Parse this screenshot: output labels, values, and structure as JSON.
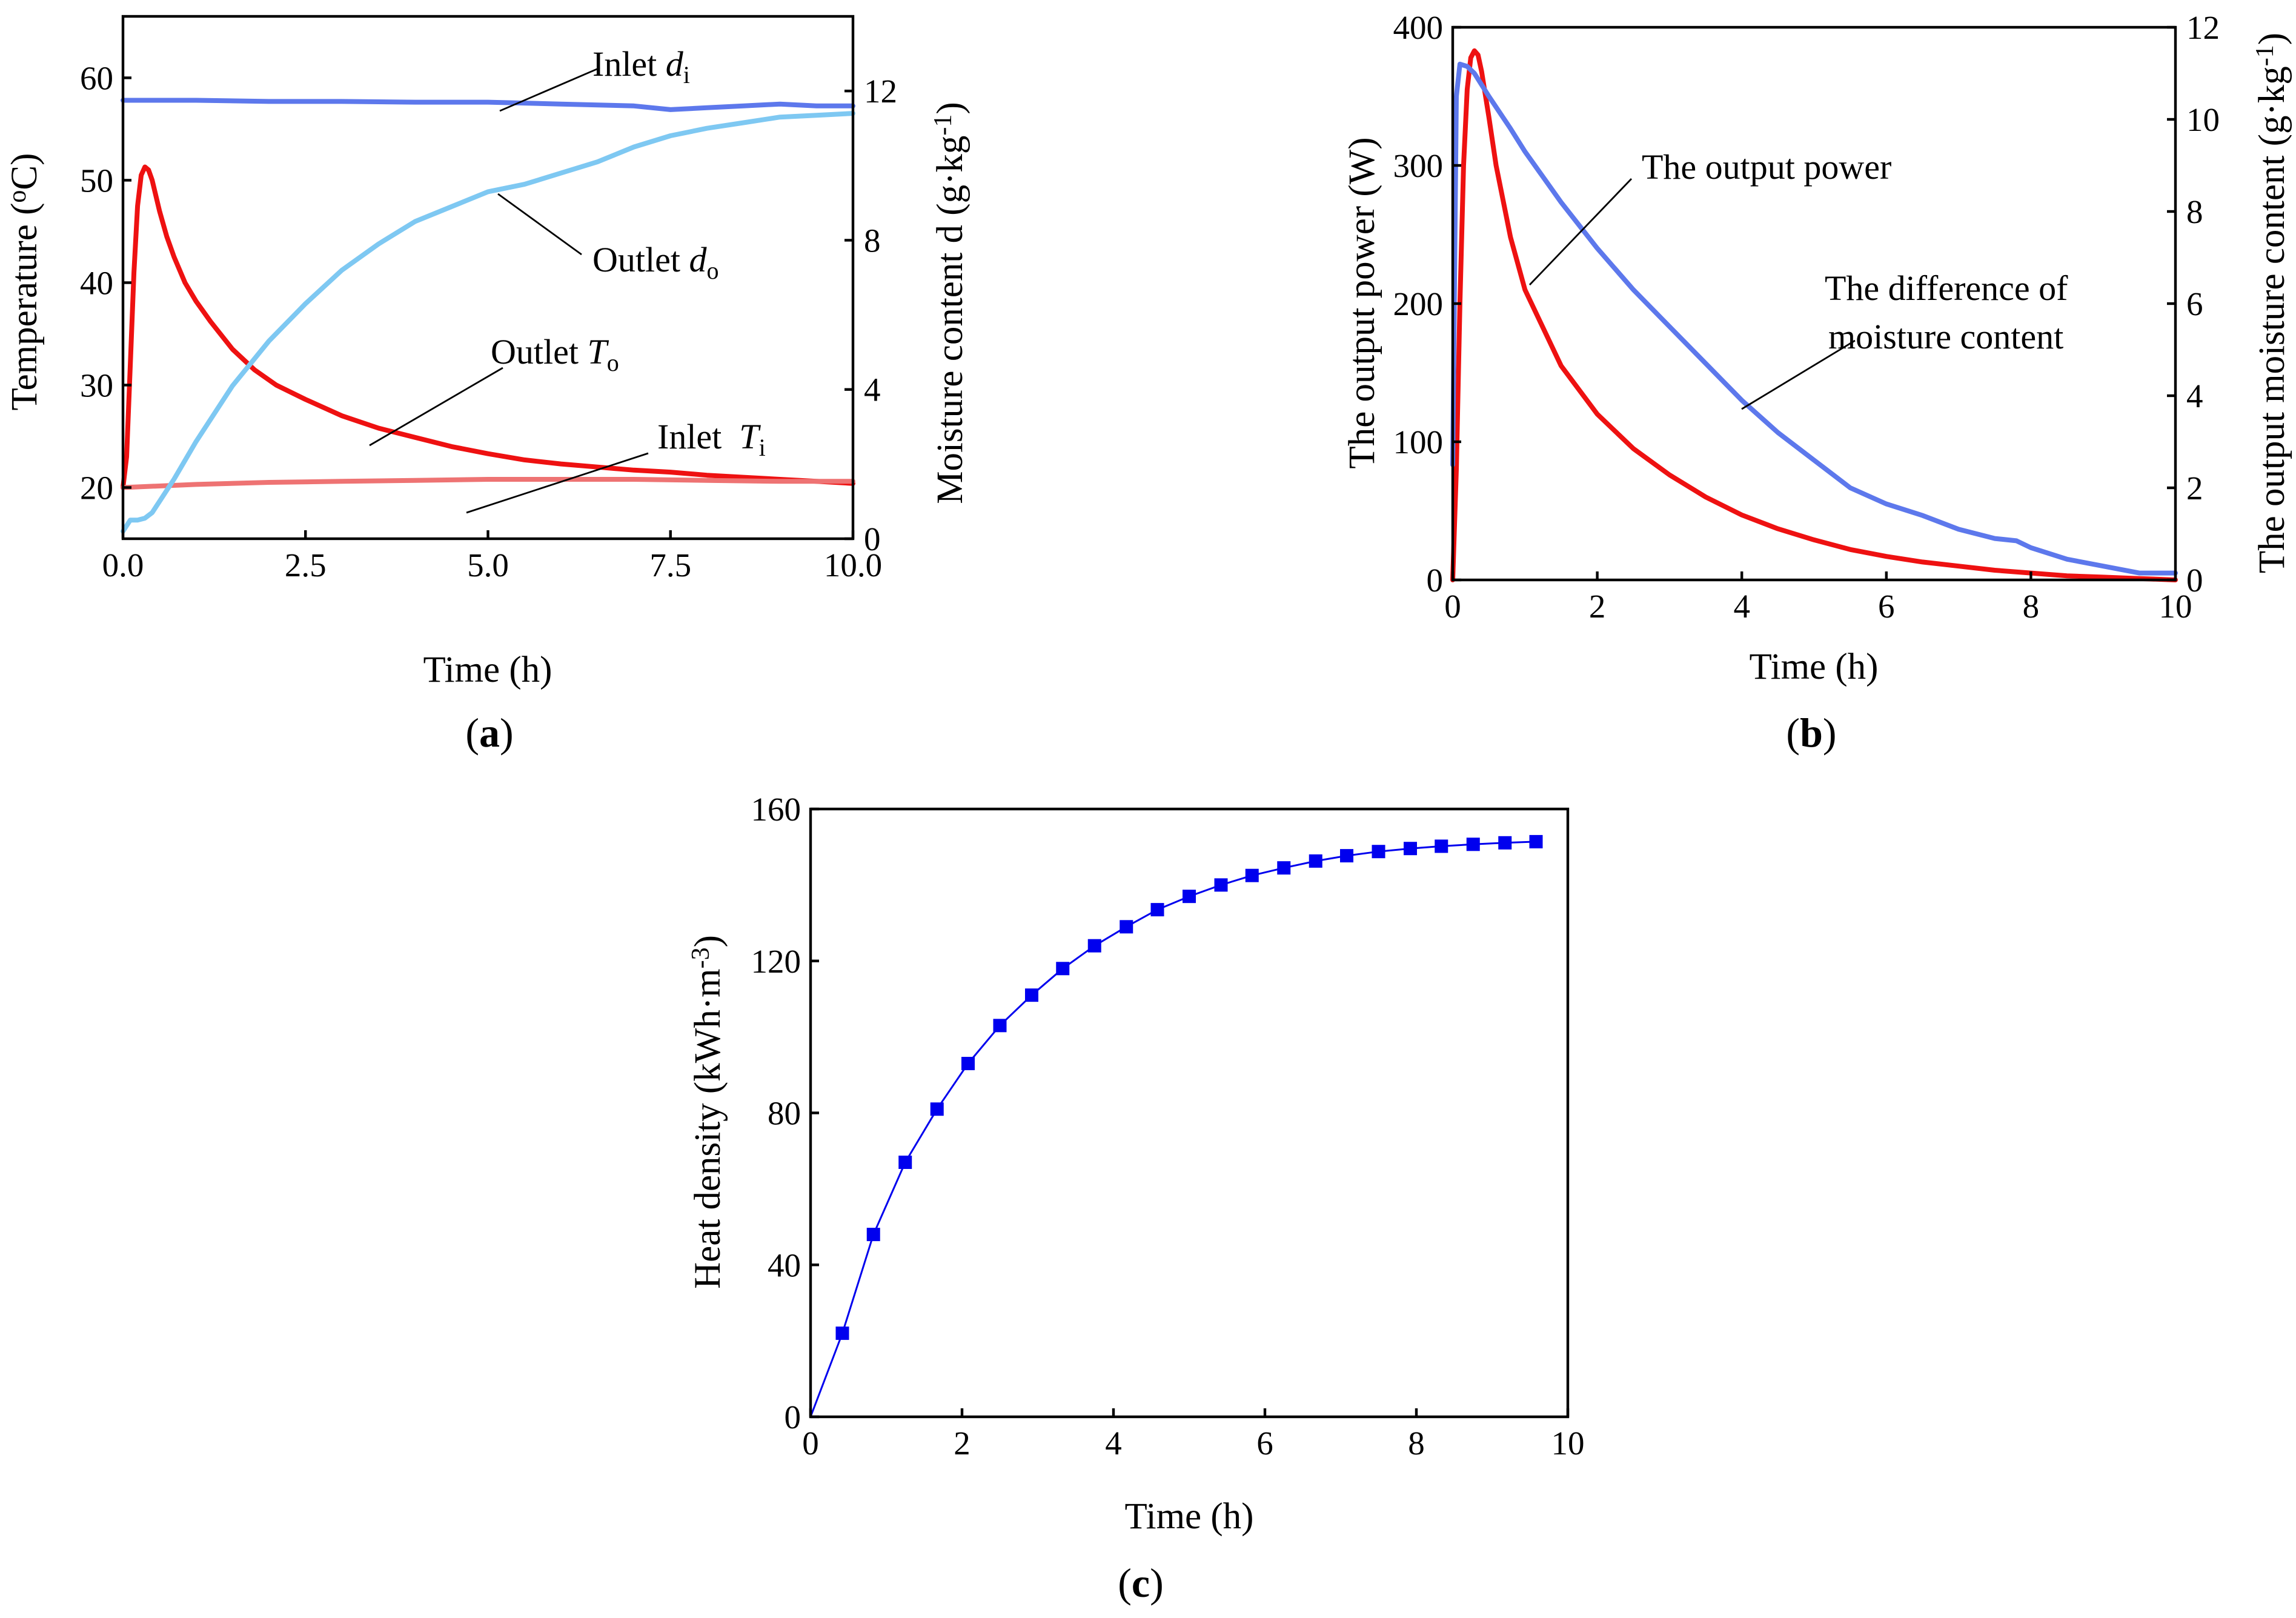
{
  "colors": {
    "red": "#ee1111",
    "pink": "#ee7373",
    "lightblue": "#7ec8f2",
    "mediumblue": "#5d78ec",
    "blue": "#0000ee"
  },
  "chart_data": [
    {
      "panel": "(a)",
      "panel_letter": "a",
      "type": "line",
      "xlabel": "Time (h)",
      "ylabel_left": "Temperature (oC)",
      "ylabel_right": "Moisture content d (g·kg-1)",
      "xlim": [
        0,
        10
      ],
      "ylim_left": [
        15,
        66
      ],
      "ylim_right": [
        0,
        14
      ],
      "xticks": [
        "0.0",
        "2.5",
        "5.0",
        "7.5",
        "10.0"
      ],
      "yticks_left": [
        "20",
        "30",
        "40",
        "50",
        "60"
      ],
      "yticks_right": [
        "0",
        "4",
        "8",
        "12"
      ],
      "series": [
        {
          "name": "Outlet To",
          "axis": "left",
          "color": "#ee1111",
          "x": [
            0,
            0.05,
            0.1,
            0.15,
            0.2,
            0.25,
            0.3,
            0.35,
            0.4,
            0.5,
            0.6,
            0.7,
            0.85,
            1.0,
            1.2,
            1.5,
            1.8,
            2.1,
            2.5,
            3.0,
            3.5,
            4.0,
            4.5,
            5.0,
            5.5,
            6.0,
            6.5,
            7.0,
            7.5,
            8.0,
            8.5,
            9.0,
            9.5,
            10.0
          ],
          "y": [
            20,
            23,
            32,
            41,
            47.5,
            50.5,
            51.3,
            51,
            50,
            47,
            44.5,
            42.5,
            40,
            38.2,
            36.2,
            33.5,
            31.5,
            30,
            28.6,
            27,
            25.8,
            24.9,
            24,
            23.3,
            22.7,
            22.3,
            22,
            21.7,
            21.5,
            21.2,
            21,
            20.8,
            20.6,
            20.4
          ]
        },
        {
          "name": "Inlet Ti",
          "axis": "left",
          "color": "#ee7373",
          "x": [
            0,
            1,
            2,
            3,
            4,
            5,
            6,
            7,
            8,
            9,
            10
          ],
          "y": [
            20,
            20.3,
            20.5,
            20.6,
            20.7,
            20.8,
            20.8,
            20.8,
            20.7,
            20.6,
            20.6
          ]
        },
        {
          "name": "Outlet do",
          "axis": "right",
          "color": "#7ec8f2",
          "x": [
            0,
            0.1,
            0.2,
            0.3,
            0.4,
            0.5,
            0.7,
            1.0,
            1.5,
            2.0,
            2.5,
            3.0,
            3.5,
            4.0,
            4.5,
            5.0,
            5.5,
            6.0,
            6.5,
            7.0,
            7.5,
            8.0,
            8.5,
            9.0,
            9.5,
            10.0
          ],
          "y": [
            0.2,
            0.5,
            0.5,
            0.55,
            0.7,
            1.0,
            1.6,
            2.6,
            4.1,
            5.3,
            6.3,
            7.2,
            7.9,
            8.5,
            8.9,
            9.3,
            9.5,
            9.8,
            10.1,
            10.5,
            10.8,
            11.0,
            11.15,
            11.3,
            11.35,
            11.4
          ]
        },
        {
          "name": "Inlet di",
          "axis": "right",
          "color": "#5d78ec",
          "x": [
            0,
            1,
            2,
            3,
            4,
            5,
            6,
            7,
            7.5,
            8,
            8.5,
            9,
            9.5,
            10.0
          ],
          "y": [
            11.75,
            11.75,
            11.72,
            11.72,
            11.7,
            11.7,
            11.65,
            11.6,
            11.5,
            11.55,
            11.6,
            11.65,
            11.6,
            11.6
          ]
        }
      ],
      "annotations": {
        "inlet_di": {
          "label": "Inlet ",
          "var": "d",
          "sub": "i"
        },
        "outlet_do": {
          "label": "Outlet ",
          "var": "d",
          "sub": "o"
        },
        "outlet_to": {
          "label": "Outlet ",
          "var": "T",
          "sub": "o"
        },
        "inlet_ti": {
          "label": "Inlet  ",
          "var": "T",
          "sub": "i"
        }
      }
    },
    {
      "panel": "(b)",
      "panel_letter": "b",
      "type": "line",
      "xlabel": "Time (h)",
      "ylabel_left": "The output power (W)",
      "ylabel_right": "The output moisture content (g·kg-1)",
      "xlim": [
        0,
        10
      ],
      "ylim_left": [
        0,
        400
      ],
      "ylim_right": [
        0,
        12
      ],
      "xticks": [
        "0",
        "2",
        "4",
        "6",
        "8",
        "10"
      ],
      "yticks_left": [
        "0",
        "100",
        "200",
        "300",
        "400"
      ],
      "yticks_right": [
        "0",
        "2",
        "4",
        "6",
        "8",
        "10",
        "12"
      ],
      "series": [
        {
          "name": "The output power",
          "axis": "left",
          "color": "#ee1111",
          "x": [
            0,
            0.05,
            0.1,
            0.15,
            0.2,
            0.25,
            0.3,
            0.35,
            0.4,
            0.5,
            0.6,
            0.8,
            1.0,
            1.5,
            2.0,
            2.5,
            3.0,
            3.5,
            4.0,
            4.5,
            5.0,
            5.5,
            6.0,
            6.5,
            7.0,
            7.5,
            8.0,
            8.5,
            9.0,
            9.5,
            10.0
          ],
          "y": [
            0,
            80,
            200,
            300,
            355,
            378,
            383,
            380,
            368,
            335,
            300,
            248,
            210,
            155,
            120,
            95,
            76,
            60,
            47,
            37,
            29,
            22,
            17,
            13,
            10,
            7,
            5,
            3,
            2,
            1,
            0
          ]
        },
        {
          "name": "The difference of moisture content",
          "axis": "right",
          "color": "#5d78ec",
          "x": [
            0,
            0.05,
            0.1,
            0.2,
            0.3,
            0.5,
            0.8,
            1.0,
            1.5,
            2.0,
            2.5,
            3.0,
            3.5,
            4.0,
            4.5,
            5.0,
            5.5,
            6.0,
            6.5,
            7.0,
            7.5,
            7.8,
            8.0,
            8.5,
            9.0,
            9.5,
            10.0
          ],
          "y": [
            2.5,
            10.5,
            11.2,
            11.15,
            11.0,
            10.5,
            9.8,
            9.3,
            8.2,
            7.2,
            6.3,
            5.5,
            4.7,
            3.9,
            3.2,
            2.6,
            2.0,
            1.65,
            1.4,
            1.1,
            0.9,
            0.85,
            0.7,
            0.45,
            0.3,
            0.15,
            0.15
          ]
        }
      ],
      "annotations": {
        "output_power": "The output power",
        "difference_line1": "The difference of",
        "difference_line2": "moisture content"
      }
    },
    {
      "panel": "(c)",
      "panel_letter": "c",
      "type": "line",
      "xlabel": "Time (h)",
      "ylabel": "Heat density (kWh·m-3)",
      "xlim": [
        0,
        10
      ],
      "ylim": [
        0,
        160
      ],
      "xticks": [
        "0",
        "2",
        "4",
        "6",
        "8",
        "10"
      ],
      "yticks": [
        "0",
        "40",
        "80",
        "120",
        "160"
      ],
      "series": [
        {
          "name": "Heat density",
          "color": "#0000ee",
          "x": [
            0.0,
            0.42,
            0.83,
            1.25,
            1.67,
            2.08,
            2.5,
            2.92,
            3.33,
            3.75,
            4.17,
            4.58,
            5.0,
            5.42,
            5.83,
            6.25,
            6.67,
            7.08,
            7.5,
            7.92,
            8.33,
            8.75,
            9.17,
            9.58
          ],
          "y": [
            0,
            22,
            48,
            67,
            81,
            93,
            103,
            111,
            118,
            124,
            129,
            133.5,
            137,
            140,
            142.5,
            144.5,
            146.3,
            147.7,
            148.8,
            149.6,
            150.2,
            150.7,
            151.1,
            151.4
          ]
        }
      ]
    }
  ]
}
